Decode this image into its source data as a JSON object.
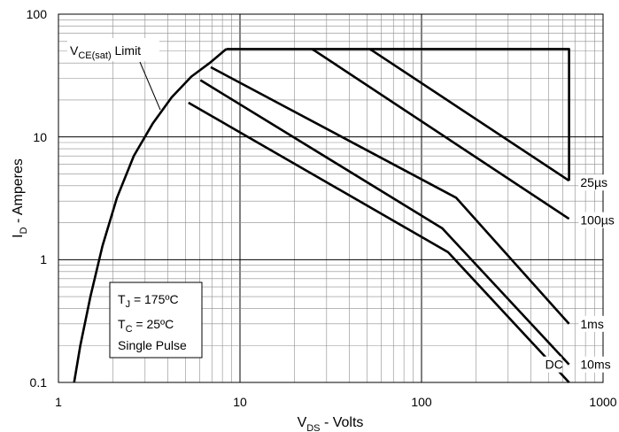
{
  "chart_data": {
    "type": "line",
    "title": "",
    "xlabel": {
      "main": "V",
      "sub": "DS",
      "rest": " - Volts"
    },
    "ylabel": {
      "main": "I",
      "sub": "D",
      "rest": " - Amperes"
    },
    "x_scale": "log",
    "y_scale": "log",
    "xlim": [
      1,
      1000
    ],
    "ylim": [
      0.1,
      100
    ],
    "x_ticks": [
      "1",
      "10",
      "100",
      "1000"
    ],
    "y_ticks": [
      "0.1",
      "1",
      "10",
      "100"
    ],
    "grid": true,
    "series": [
      {
        "name": "VCE(sat) Limit",
        "x": [
          1.22,
          1.32,
          1.5,
          1.75,
          2.1,
          2.6,
          3.3,
          4.2,
          5.4,
          6.8,
          8.4
        ],
        "y": [
          0.1,
          0.2,
          0.5,
          1.3,
          3.2,
          7.0,
          12.8,
          21,
          31,
          40,
          52
        ]
      },
      {
        "name": "25µs",
        "x": [
          8.4,
          650,
          650
        ],
        "y": [
          52,
          52,
          4.4
        ]
      },
      {
        "name": "100µs",
        "x": [
          25,
          650
        ],
        "y": [
          52,
          2.15
        ]
      },
      {
        "name": "25µs",
        "x": [
          52,
          650
        ],
        "y": [
          52,
          4.4
        ]
      },
      {
        "name": "1ms",
        "x": [
          6.9,
          155,
          650
        ],
        "y": [
          37,
          3.2,
          0.3
        ]
      },
      {
        "name": "10ms",
        "x": [
          6.05,
          130,
          650
        ],
        "y": [
          29,
          1.8,
          0.14
        ]
      },
      {
        "name": "DC",
        "x": [
          5.2,
          140,
          650
        ],
        "y": [
          19,
          1.15,
          0.1
        ]
      }
    ],
    "curve_labels": [
      {
        "text": "25µs",
        "x": 750,
        "y": 4.25
      },
      {
        "text": "100µs",
        "x": 750,
        "y": 2.1
      },
      {
        "text": "1ms",
        "x": 750,
        "y": 0.3
      },
      {
        "text": "DC",
        "x": 480,
        "y": 0.14
      },
      {
        "text": "10ms",
        "x": 750,
        "y": 0.14
      }
    ],
    "annotations": {
      "limit_label": {
        "main": "V",
        "sub": "CE(sat)",
        "rest": " Limit"
      },
      "conditions": [
        {
          "main": "T",
          "sub": "J",
          "rest": " = 175ºC"
        },
        {
          "main": "T",
          "sub": "C",
          "rest": " = 25ºC"
        },
        {
          "main": "Single Pulse",
          "sub": "",
          "rest": ""
        }
      ]
    },
    "colors": {
      "line": "#000000",
      "grid": "#8c8c8c",
      "background": "#ffffff"
    }
  }
}
